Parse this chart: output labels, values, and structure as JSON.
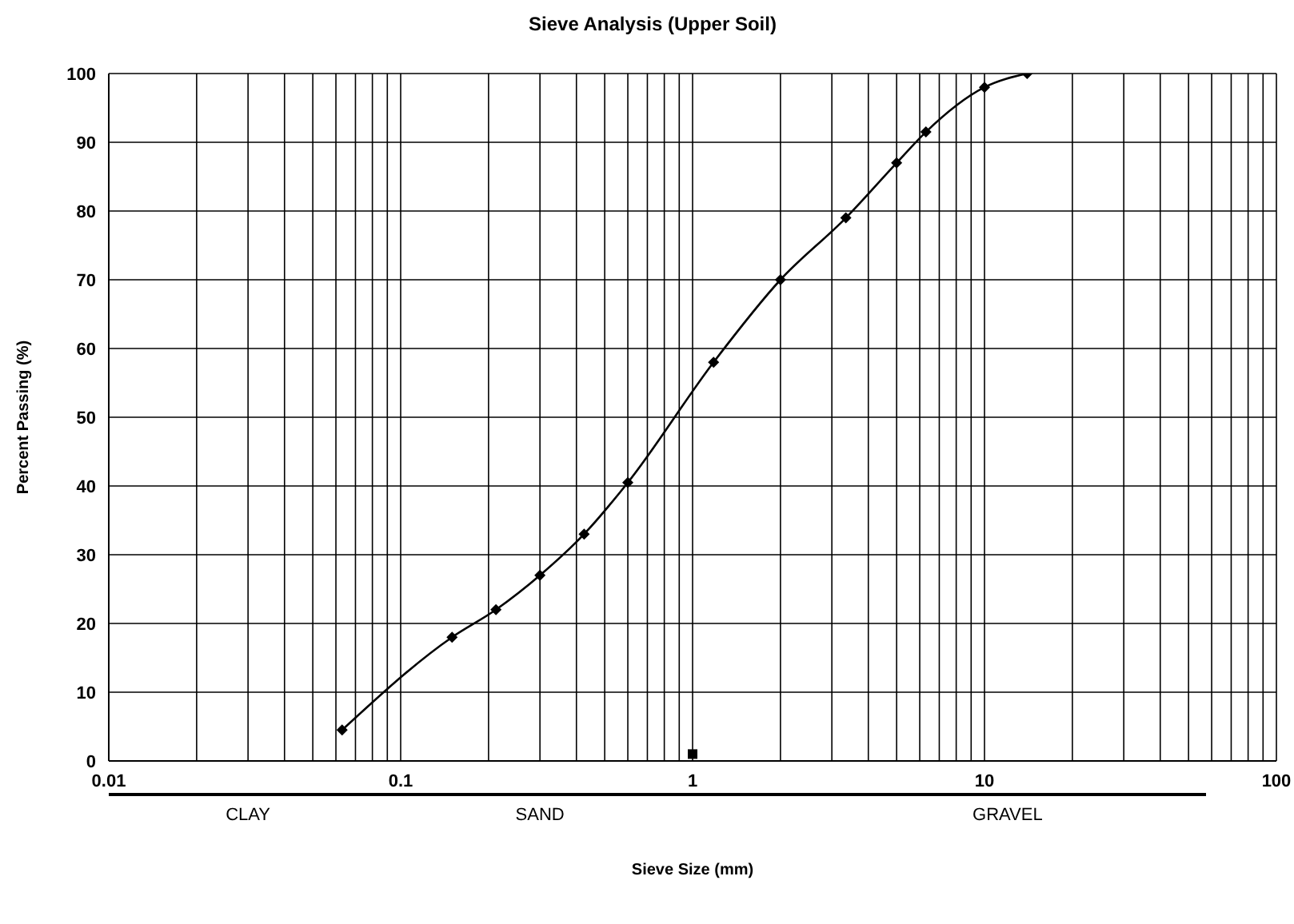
{
  "chart_data": {
    "type": "line",
    "title": "Sieve Analysis (Upper Soil)",
    "xlabel": "Sieve Size (mm)",
    "ylabel": "Percent Passing (%)",
    "log": "x",
    "xlim": [
      0.01,
      100
    ],
    "xticks": [
      0.01,
      0.1,
      1,
      10,
      100
    ],
    "ylim": [
      0,
      100
    ],
    "yticks": [
      0,
      10,
      20,
      30,
      40,
      50,
      60,
      70,
      80,
      90,
      100
    ],
    "grid": true,
    "series": [
      {
        "color": "#000000",
        "marker": "diamond",
        "x": [
          0.063,
          0.15,
          0.212,
          0.3,
          0.425,
          0.6,
          1.18,
          2,
          3.35,
          5,
          6.3,
          10,
          14
        ],
        "values": [
          4.5,
          18,
          22,
          27,
          33,
          40.5,
          58,
          70,
          79,
          87,
          91.5,
          98,
          100
        ]
      },
      {
        "type": "scatter",
        "color": "#000000",
        "marker": "square",
        "x": [
          1
        ],
        "values": [
          1
        ]
      }
    ],
    "annotations": [
      "CLAY",
      "SAND",
      "GRAVEL"
    ]
  }
}
